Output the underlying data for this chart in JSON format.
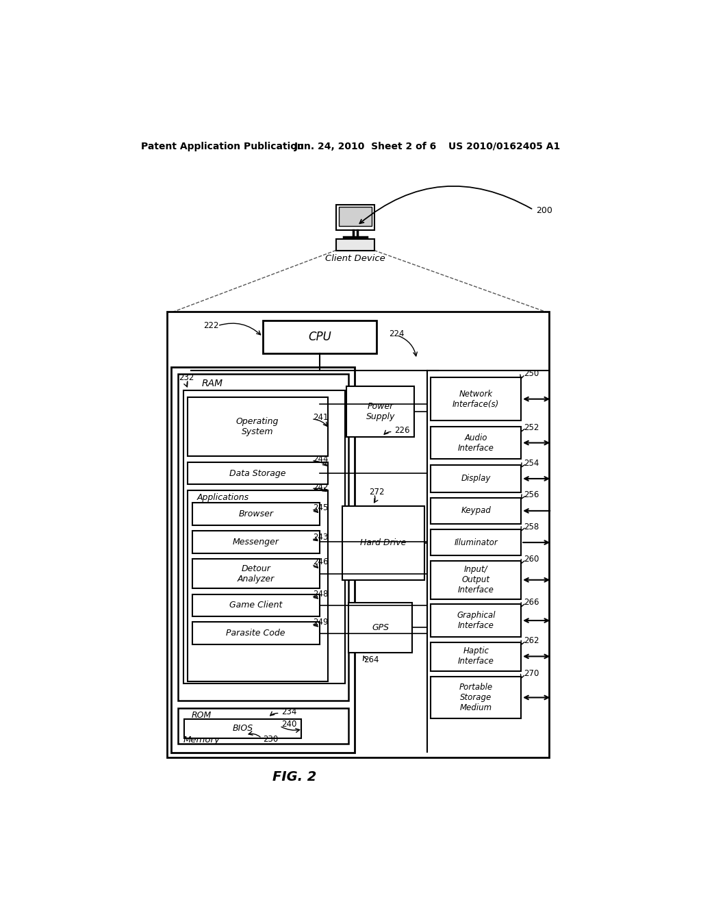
{
  "bg_color": "#ffffff",
  "header_left": "Patent Application Publication",
  "header_mid": "Jun. 24, 2010  Sheet 2 of 6",
  "header_right": "US 2010/0162405 A1",
  "fig_label": "FIG. 2",
  "ref_200": "200",
  "client_device_label": "Client Device",
  "cpu_label": "CPU",
  "ram_label": "RAM",
  "memory_label": "Memory",
  "rom_label": "ROM",
  "bios_label": "BIOS",
  "power_supply_label": "Power\nSupply",
  "hard_drive_label": "Hard Drive",
  "gps_label": "GPS",
  "os_label": "Operating\nSystem",
  "data_storage_label": "Data Storage",
  "applications_label": "Applications",
  "browser_label": "Browser",
  "messenger_label": "Messenger",
  "detour_label": "Detour\nAnalyzer",
  "game_client_label": "Game Client",
  "parasite_label": "Parasite Code",
  "network_label": "Network\nInterface(s)",
  "audio_label": "Audio\nInterface",
  "display_label": "Display",
  "keypad_label": "Keypad",
  "illuminator_label": "Illuminator",
  "io_label": "Input/\nOutput\nInterface",
  "graphical_label": "Graphical\nInterface",
  "haptic_label": "Haptic\nInterface",
  "portable_label": "Portable\nStorage\nMedium",
  "ref_222": "222",
  "ref_224": "224",
  "ref_226": "226",
  "ref_230": "230",
  "ref_232": "232",
  "ref_234": "234",
  "ref_240": "240",
  "ref_241": "241",
  "ref_242": "242",
  "ref_243": "243",
  "ref_244": "244",
  "ref_245": "245",
  "ref_246": "246",
  "ref_248": "248",
  "ref_249": "249",
  "ref_250": "250",
  "ref_252": "252",
  "ref_254": "254",
  "ref_256": "256",
  "ref_258": "258",
  "ref_260": "260",
  "ref_262": "262",
  "ref_264": "264",
  "ref_266": "266",
  "ref_270": "270",
  "ref_272": "272"
}
